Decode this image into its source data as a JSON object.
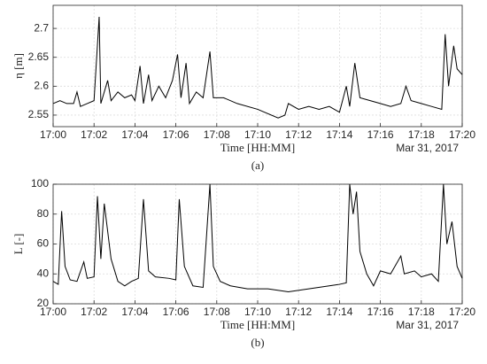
{
  "chart_data": [
    {
      "type": "line",
      "ylabel": "η [m]",
      "xlabel": "Time [HH:MM]",
      "annotation": "Mar 31, 2017",
      "panel_label": "(a)",
      "color": "#000000",
      "grid": true,
      "xlim": [
        "17:00",
        "17:20"
      ],
      "xticks": [
        "17:00",
        "17:02",
        "17:04",
        "17:06",
        "17:08",
        "17:10",
        "17:12",
        "17:14",
        "17:16",
        "17:18",
        "17:20"
      ],
      "ylim": [
        2.53,
        2.74
      ],
      "yticks": [
        2.55,
        2.6,
        2.65,
        2.7
      ],
      "x": [
        "17:00:00",
        "17:00:20",
        "17:00:40",
        "17:01:00",
        "17:01:10",
        "17:01:20",
        "17:01:40",
        "17:02:00",
        "17:02:15",
        "17:02:20",
        "17:02:40",
        "17:02:50",
        "17:03:10",
        "17:03:30",
        "17:03:50",
        "17:04:00",
        "17:04:15",
        "17:04:25",
        "17:04:40",
        "17:04:50",
        "17:05:10",
        "17:05:30",
        "17:05:50",
        "17:06:05",
        "17:06:15",
        "17:06:30",
        "17:06:40",
        "17:07:00",
        "17:07:20",
        "17:07:40",
        "17:07:50",
        "17:08:20",
        "17:09:00",
        "17:10:00",
        "17:11:00",
        "17:11:20",
        "17:11:30",
        "17:12:00",
        "17:12:30",
        "17:13:00",
        "17:13:30",
        "17:14:00",
        "17:14:20",
        "17:14:30",
        "17:14:45",
        "17:15:00",
        "17:15:30",
        "17:16:00",
        "17:16:30",
        "17:17:00",
        "17:17:15",
        "17:17:30",
        "17:18:00",
        "17:18:30",
        "17:19:00",
        "17:19:10",
        "17:19:20",
        "17:19:35",
        "17:19:45",
        "17:20:00"
      ],
      "values": [
        2.57,
        2.575,
        2.57,
        2.57,
        2.59,
        2.565,
        2.57,
        2.575,
        2.72,
        2.57,
        2.61,
        2.575,
        2.59,
        2.58,
        2.585,
        2.575,
        2.635,
        2.57,
        2.62,
        2.575,
        2.6,
        2.58,
        2.61,
        2.655,
        2.58,
        2.64,
        2.57,
        2.59,
        2.58,
        2.66,
        2.58,
        2.58,
        2.57,
        2.56,
        2.545,
        2.55,
        2.57,
        2.56,
        2.565,
        2.56,
        2.565,
        2.555,
        2.6,
        2.565,
        2.64,
        2.58,
        2.575,
        2.57,
        2.565,
        2.57,
        2.6,
        2.575,
        2.57,
        2.565,
        2.56,
        2.69,
        2.6,
        2.67,
        2.63,
        2.62
      ]
    },
    {
      "type": "line",
      "ylabel": "L [-]",
      "xlabel": "Time [HH:MM]",
      "annotation": "Mar 31, 2017",
      "panel_label": "(b)",
      "color": "#000000",
      "grid": true,
      "xlim": [
        "17:00",
        "17:20"
      ],
      "xticks": [
        "17:00",
        "17:02",
        "17:04",
        "17:06",
        "17:08",
        "17:10",
        "17:12",
        "17:14",
        "17:16",
        "17:18",
        "17:20"
      ],
      "ylim": [
        20,
        100
      ],
      "yticks": [
        20,
        40,
        60,
        80,
        100
      ],
      "x": [
        "17:00:00",
        "17:00:15",
        "17:00:25",
        "17:00:35",
        "17:00:50",
        "17:01:10",
        "17:01:30",
        "17:01:40",
        "17:02:00",
        "17:02:10",
        "17:02:20",
        "17:02:30",
        "17:02:50",
        "17:03:10",
        "17:03:30",
        "17:03:50",
        "17:04:10",
        "17:04:25",
        "17:04:40",
        "17:05:00",
        "17:05:40",
        "17:06:00",
        "17:06:10",
        "17:06:25",
        "17:06:50",
        "17:07:20",
        "17:07:40",
        "17:07:50",
        "17:08:10",
        "17:08:40",
        "17:09:30",
        "17:10:30",
        "17:11:30",
        "17:12:30",
        "17:13:30",
        "17:14:00",
        "17:14:20",
        "17:14:30",
        "17:14:40",
        "17:14:50",
        "17:15:00",
        "17:15:20",
        "17:15:40",
        "17:16:00",
        "17:16:30",
        "17:17:00",
        "17:17:10",
        "17:17:40",
        "17:18:00",
        "17:18:30",
        "17:18:50",
        "17:19:05",
        "17:19:15",
        "17:19:30",
        "17:19:45",
        "17:20:00"
      ],
      "values": [
        35,
        33,
        82,
        45,
        36,
        35,
        48,
        37,
        38,
        92,
        50,
        87,
        50,
        35,
        32,
        35,
        37,
        90,
        42,
        38,
        37,
        36,
        90,
        45,
        32,
        31,
        100,
        45,
        35,
        32,
        30,
        30,
        28,
        30,
        32,
        33,
        34,
        100,
        80,
        95,
        55,
        40,
        32,
        42,
        40,
        52,
        40,
        42,
        38,
        40,
        35,
        100,
        60,
        75,
        45,
        37
      ]
    }
  ]
}
